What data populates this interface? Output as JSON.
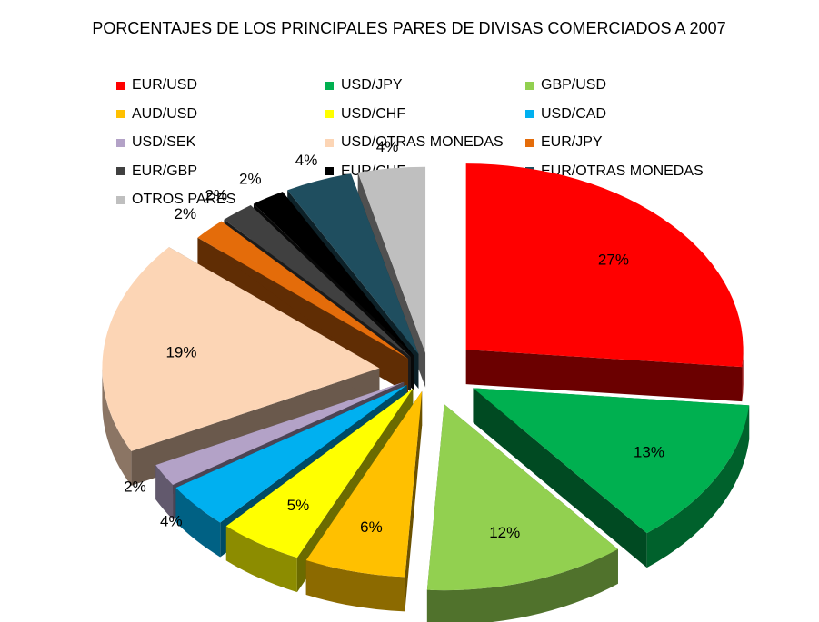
{
  "chart_data": {
    "type": "pie",
    "title": "PORCENTAJES DE LOS PRINCIPALES PARES DE DIVISAS COMERCIADOS A 2007",
    "legend_position": "top",
    "style": "exploded 3d pie",
    "slices": [
      {
        "label": "EUR/USD",
        "value": 27,
        "value_label": "27%",
        "color": "#ff0000"
      },
      {
        "label": "USD/JPY",
        "value": 13,
        "value_label": "13%",
        "color": "#00b050"
      },
      {
        "label": "GBP/USD",
        "value": 12,
        "value_label": "12%",
        "color": "#92d050"
      },
      {
        "label": "AUD/USD",
        "value": 6,
        "value_label": "6%",
        "color": "#ffc000"
      },
      {
        "label": "USD/CHF",
        "value": 5,
        "value_label": "5%",
        "color": "#ffff00"
      },
      {
        "label": "USD/CAD",
        "value": 4,
        "value_label": "4%",
        "color": "#00b0f0"
      },
      {
        "label": "USD/SEK",
        "value": 2,
        "value_label": "2%",
        "color": "#b3a2c7"
      },
      {
        "label": "USD/OTRAS MONEDAS",
        "value": 19,
        "value_label": "19%",
        "color": "#fcd5b5"
      },
      {
        "label": "EUR/JPY",
        "value": 2,
        "value_label": "2%",
        "color": "#e46c0a"
      },
      {
        "label": "EUR/GBP",
        "value": 2,
        "value_label": "2%",
        "color": "#404040"
      },
      {
        "label": "EUR/CHF",
        "value": 2,
        "value_label": "2%",
        "color": "#000000"
      },
      {
        "label": "EUR/OTRAS MONEDAS",
        "value": 4,
        "value_label": "4%",
        "color": "#1f4e5f"
      },
      {
        "label": "OTROS PARES",
        "value": 4,
        "value_label": "4%",
        "color": "#bfbfbf"
      }
    ]
  }
}
